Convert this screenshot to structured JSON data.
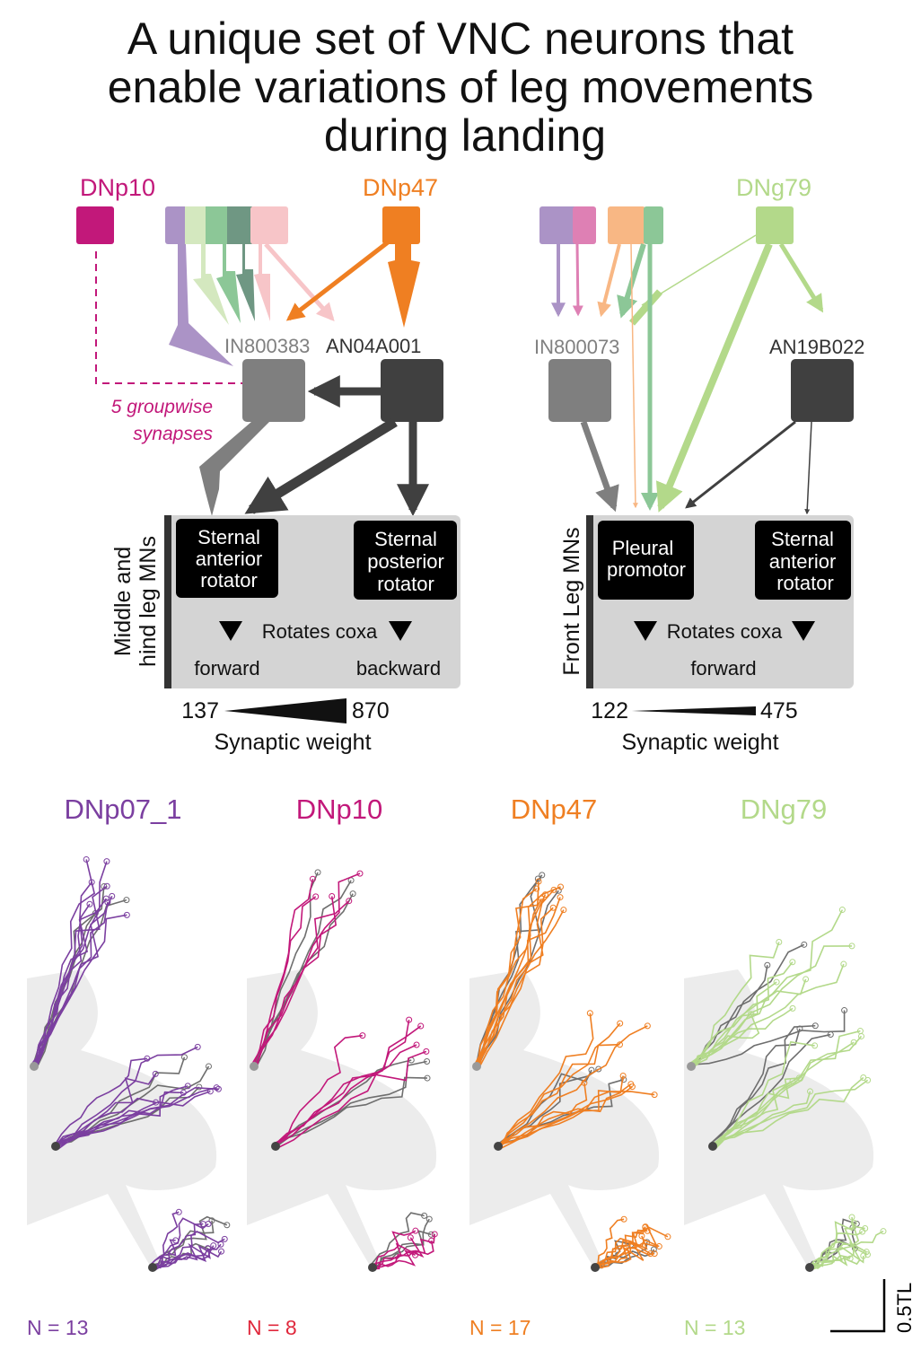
{
  "title": [
    "A unique set of VNC neurons that",
    "enable variations of leg movements",
    "during landing"
  ],
  "colors": {
    "DNp10": "#c2187a",
    "DNp47": "#ef7f22",
    "DNg79": "#b3d98a",
    "DNp07_1": "#7b3fa0",
    "interneuron_gray": "#7f7f7f",
    "ascending_dark": "#404040",
    "mn_panel": "#d4d4d4"
  },
  "left_circuit": {
    "sources": {
      "dnp10": "DNp10",
      "dnp47": "DNp47"
    },
    "annotation": [
      "5 groupwise",
      "synapses"
    ],
    "neurons": {
      "in": "IN800383",
      "an": "AN04A001"
    },
    "mn_group_label": [
      "Middle and",
      "hind leg MNs"
    ],
    "mn1": [
      "Sternal",
      "anterior",
      "rotator"
    ],
    "mn2": [
      "Sternal",
      "posterior",
      "rotator"
    ],
    "rotates": "Rotates coxa",
    "dir1": "forward",
    "dir2": "backward",
    "weight_min": "137",
    "weight_max": "870",
    "weight_label": "Synaptic weight"
  },
  "right_circuit": {
    "sources": {
      "dng79": "DNg79"
    },
    "neurons": {
      "in": "IN800073",
      "an": "AN19B022"
    },
    "mn_group_label": "Front Leg MNs",
    "mn1": [
      "Pleural",
      "promotor"
    ],
    "mn2": [
      "Sternal",
      "anterior",
      "rotator"
    ],
    "rotates": "Rotates coxa",
    "dir1": "forward",
    "weight_min": "122",
    "weight_max": "475",
    "weight_label": "Synaptic weight"
  },
  "panels": [
    {
      "name": "DNp07_1",
      "n": "N = 13",
      "color": "#7b3fa0",
      "ncolor": "#7b3fa0"
    },
    {
      "name": "DNp10",
      "n": "N = 8",
      "color": "#c2187a",
      "ncolor": "#e0283c"
    },
    {
      "name": "DNp47",
      "n": "N = 17",
      "color": "#ef7f22",
      "ncolor": "#ef7f22"
    },
    {
      "name": "DNg79",
      "n": "N = 13",
      "color": "#b3d98a",
      "ncolor": "#b3d98a"
    }
  ],
  "scale_bar": "0.5TL"
}
